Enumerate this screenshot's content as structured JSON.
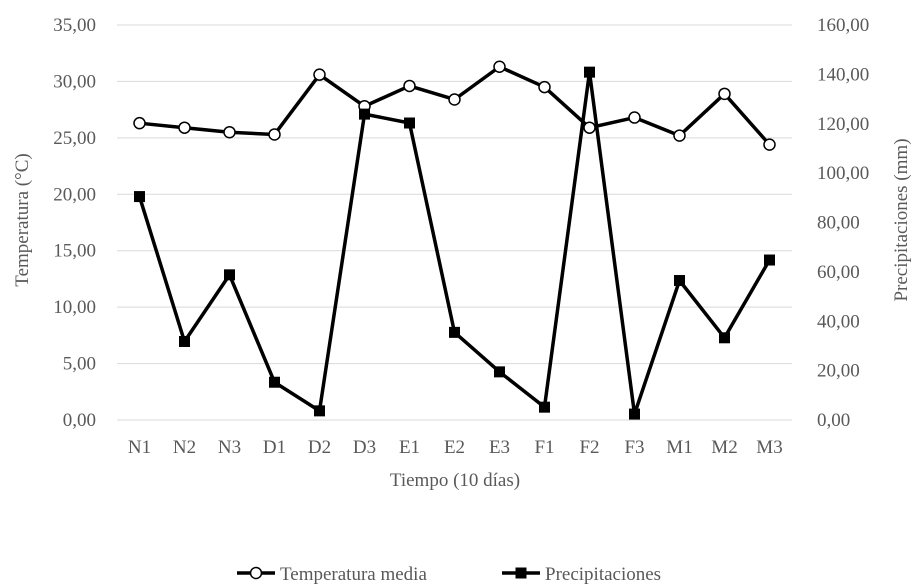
{
  "chart_data": {
    "type": "line",
    "categories": [
      "N1",
      "N2",
      "N3",
      "D1",
      "D2",
      "D3",
      "E1",
      "E2",
      "E3",
      "F1",
      "F2",
      "F3",
      "M1",
      "M2",
      "M3"
    ],
    "xlabel": "Tiempo (10 días)",
    "ylabel_left": "Temperatura (°C)",
    "ylabel_right": "Precipitaciones (mm)",
    "ylim_left": [
      0,
      35
    ],
    "ylim_right": [
      0,
      160
    ],
    "yticks_left": [
      "0,00",
      "5,00",
      "10,00",
      "15,00",
      "20,00",
      "25,00",
      "30,00",
      "35,00"
    ],
    "yticks_right": [
      "0,00",
      "20,00",
      "40,00",
      "60,00",
      "80,00",
      "100,00",
      "120,00",
      "140,00",
      "160,00"
    ],
    "grid": true,
    "legend_position": "bottom",
    "series": [
      {
        "name": "Temperatura media",
        "axis": "left",
        "marker": "open-circle",
        "values": [
          26.3,
          25.9,
          25.5,
          25.3,
          30.6,
          27.8,
          29.6,
          28.4,
          31.3,
          29.5,
          25.9,
          26.8,
          25.2,
          28.9,
          24.4
        ]
      },
      {
        "name": "Precipitaciones",
        "axis": "right",
        "marker": "filled-square",
        "values": [
          90.5,
          31.8,
          58.8,
          15.3,
          3.7,
          123.9,
          120.3,
          35.5,
          19.5,
          5.2,
          140.9,
          2.4,
          56.5,
          33.3,
          64.8
        ]
      }
    ],
    "colors": {
      "line": "#000000",
      "grid": "#d9d9d9",
      "text": "#595959"
    }
  }
}
